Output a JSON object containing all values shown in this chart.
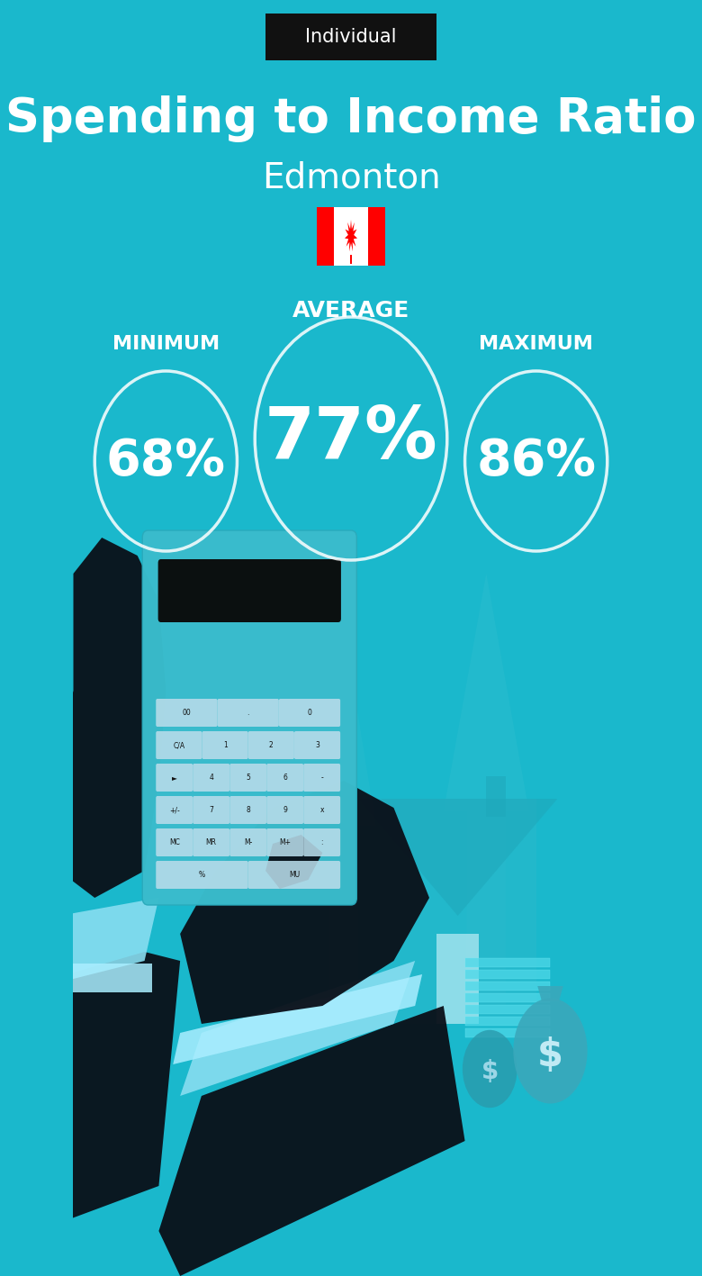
{
  "title": "Spending to Income Ratio",
  "subtitle": "Edmonton",
  "tag": "Individual",
  "bg_color": "#1ab8cc",
  "text_color": "#ffffff",
  "tag_bg": "#111111",
  "min_label": "MINIMUM",
  "avg_label": "AVERAGE",
  "max_label": "MAXIMUM",
  "min_value": "68%",
  "avg_value": "77%",
  "max_value": "86%",
  "fig_width": 7.8,
  "fig_height": 14.17,
  "dpi": 100
}
